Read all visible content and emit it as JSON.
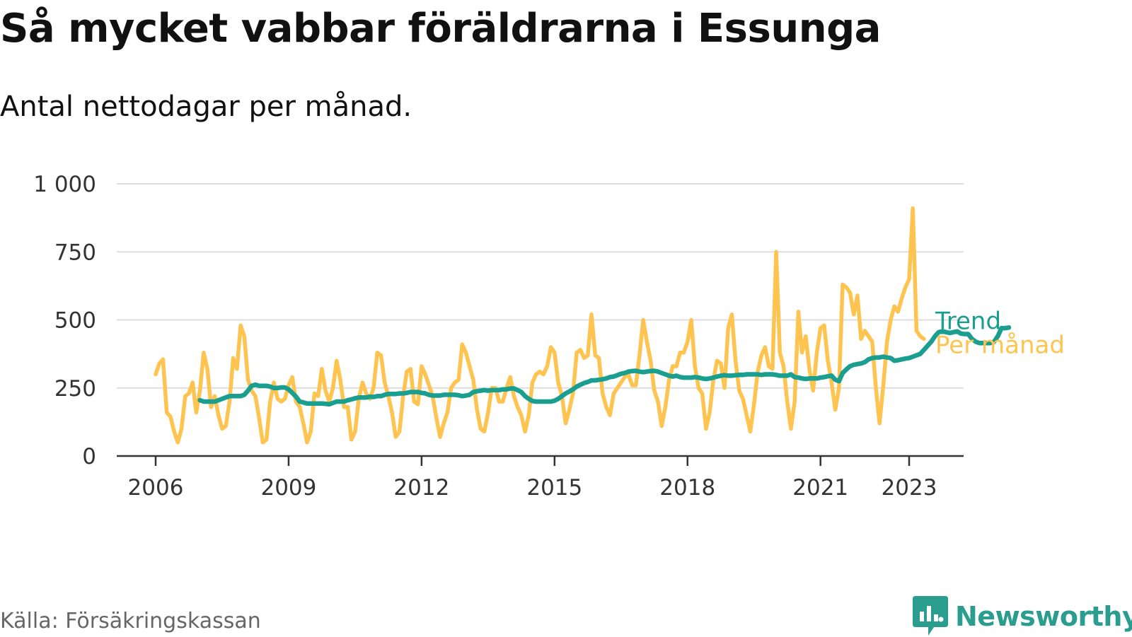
{
  "header": {
    "title": "Så mycket vabbar föräldrarna i Essunga",
    "subtitle": "Antal nettodagar per månad."
  },
  "footer": {
    "source": "Källa: Försäkringskassan",
    "brand": "Newsworthy",
    "brand_icon": "newsworthy-logo-icon"
  },
  "colors": {
    "monthly": "#fec44f",
    "trend": "#1a9e8f",
    "grid": "#dddddd",
    "axis": "#333333",
    "brand": "#2a9d8f"
  },
  "chart_data": {
    "type": "line",
    "xlabel": "",
    "ylabel": "",
    "xlim": [
      2006.0,
      2024.25
    ],
    "ylim": [
      0,
      1000
    ],
    "x_ticks": [
      2006,
      2009,
      2012,
      2015,
      2018,
      2021,
      2023
    ],
    "x_tick_labels": [
      "2006",
      "2009",
      "2012",
      "2015",
      "2018",
      "2021",
      "2023"
    ],
    "y_ticks": [
      0,
      250,
      500,
      750,
      1000
    ],
    "y_tick_labels": [
      "0",
      "250",
      "500",
      "750",
      "1 000"
    ],
    "grid": true,
    "legend": "direct labels at right end of lines",
    "series": [
      {
        "name": "Per månad",
        "x_start": "2006-01",
        "frequency": "monthly",
        "values": [
          300,
          340,
          355,
          160,
          145,
          90,
          50,
          100,
          220,
          230,
          270,
          160,
          240,
          380,
          320,
          180,
          220,
          150,
          100,
          110,
          200,
          360,
          320,
          480,
          440,
          280,
          240,
          220,
          140,
          50,
          60,
          200,
          270,
          210,
          200,
          210,
          260,
          290,
          200,
          180,
          120,
          50,
          90,
          230,
          220,
          320,
          240,
          200,
          250,
          350,
          280,
          180,
          180,
          60,
          90,
          210,
          270,
          230,
          210,
          250,
          380,
          370,
          270,
          220,
          160,
          70,
          90,
          220,
          310,
          320,
          200,
          190,
          330,
          300,
          260,
          220,
          140,
          70,
          120,
          160,
          250,
          270,
          280,
          410,
          380,
          330,
          280,
          170,
          100,
          90,
          160,
          250,
          250,
          200,
          200,
          250,
          290,
          220,
          180,
          150,
          90,
          150,
          270,
          300,
          310,
          300,
          330,
          400,
          380,
          270,
          220,
          120,
          170,
          230,
          380,
          390,
          360,
          370,
          520,
          370,
          360,
          230,
          180,
          150,
          230,
          250,
          270,
          290,
          300,
          260,
          260,
          370,
          500,
          420,
          350,
          240,
          200,
          110,
          180,
          280,
          330,
          330,
          380,
          380,
          420,
          500,
          330,
          250,
          230,
          100,
          160,
          280,
          350,
          340,
          250,
          470,
          520,
          350,
          240,
          210,
          150,
          90,
          190,
          310,
          370,
          400,
          330,
          320,
          750,
          380,
          330,
          200,
          100,
          200,
          530,
          380,
          440,
          320,
          240,
          380,
          470,
          480,
          350,
          270,
          170,
          250,
          630,
          620,
          600,
          520,
          590,
          430,
          460,
          440,
          420,
          250,
          120,
          260,
          420,
          500,
          550,
          530,
          580,
          620,
          650,
          910,
          460,
          440,
          430
        ]
      },
      {
        "name": "Trend",
        "x_start": "2007-01",
        "frequency": "monthly",
        "values": [
          205,
          200,
          200,
          200,
          200,
          205,
          210,
          215,
          220,
          220,
          220,
          220,
          225,
          240,
          258,
          262,
          258,
          258,
          258,
          255,
          250,
          250,
          252,
          252,
          245,
          232,
          218,
          200,
          197,
          193,
          193,
          193,
          193,
          193,
          192,
          190,
          195,
          200,
          200,
          200,
          205,
          208,
          212,
          215,
          215,
          215,
          218,
          217,
          220,
          220,
          225,
          228,
          228,
          228,
          230,
          230,
          232,
          235,
          235,
          235,
          232,
          230,
          225,
          222,
          222,
          222,
          225,
          225,
          225,
          225,
          223,
          220,
          222,
          225,
          235,
          238,
          240,
          242,
          240,
          242,
          242,
          242,
          245,
          245,
          248,
          248,
          242,
          235,
          220,
          210,
          202,
          200,
          200,
          200,
          200,
          200,
          203,
          210,
          220,
          230,
          237,
          245,
          255,
          262,
          268,
          272,
          278,
          278,
          280,
          282,
          285,
          290,
          292,
          297,
          302,
          305,
          310,
          312,
          313,
          310,
          308,
          310,
          312,
          313,
          310,
          305,
          300,
          295,
          292,
          295,
          290,
          288,
          288,
          288,
          290,
          288,
          285,
          283,
          285,
          288,
          292,
          295,
          297,
          295,
          295,
          297,
          298,
          298,
          300,
          300,
          300,
          300,
          298,
          300,
          300,
          300,
          298,
          295,
          295,
          295,
          300,
          290,
          288,
          285,
          283,
          285,
          285,
          285,
          288,
          290,
          293,
          295,
          280,
          275,
          305,
          318,
          330,
          335,
          338,
          340,
          345,
          355,
          360,
          362,
          362,
          365,
          362,
          360,
          350,
          352,
          355,
          358,
          360,
          365,
          370,
          375,
          390,
          405,
          420,
          440,
          455,
          458,
          455,
          452,
          455,
          458,
          450,
          448,
          448,
          430,
          420,
          415,
          415,
          415,
          415,
          420,
          440,
          470,
          470,
          472
        ]
      }
    ]
  }
}
